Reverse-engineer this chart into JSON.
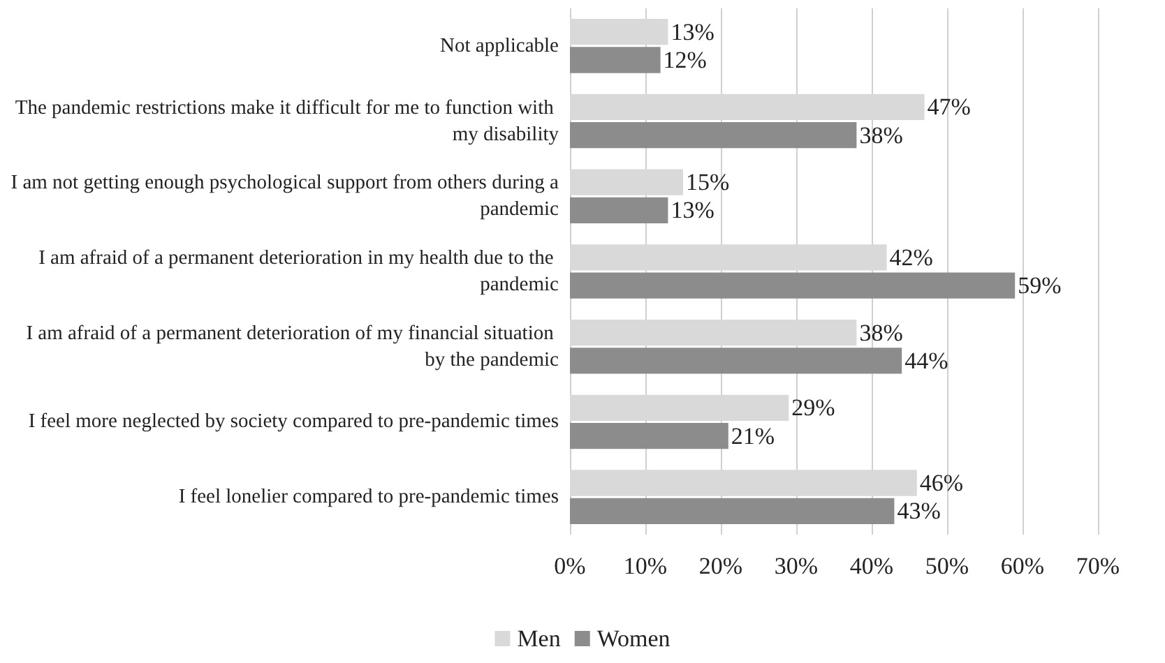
{
  "chart_data": {
    "type": "bar",
    "orientation": "horizontal",
    "categories": [
      "Not applicable",
      "The pandemic restrictions make it difficult for me to function with my disability",
      "I am not getting enough psychological support from others during a pandemic",
      "I am afraid of a permanent deterioration in my health due to the pandemic",
      "I am afraid of a permanent deterioration of my financial situation by the pandemic",
      "I feel more neglected by society compared to pre-pandemic times",
      "I feel lonelier compared to pre-pandemic times"
    ],
    "series": [
      {
        "name": "Men",
        "color": "#d9d9d9",
        "values": [
          13,
          47,
          15,
          42,
          38,
          29,
          46
        ],
        "value_labels": [
          "13%",
          "47%",
          "15%",
          "42%",
          "38%",
          "29%",
          "46%"
        ]
      },
      {
        "name": "Women",
        "color": "#8c8c8c",
        "values": [
          12,
          38,
          13,
          59,
          44,
          21,
          43
        ],
        "value_labels": [
          "12%",
          "38%",
          "13%",
          "59%",
          "44%",
          "21%",
          "43%"
        ]
      }
    ],
    "xlim": [
      0,
      70
    ],
    "xticks": [
      {
        "value": 0,
        "label": "0%"
      },
      {
        "value": 10,
        "label": "10%"
      },
      {
        "value": 20,
        "label": "20%"
      },
      {
        "value": 30,
        "label": "30%"
      },
      {
        "value": 40,
        "label": "40%"
      },
      {
        "value": 50,
        "label": "50%"
      },
      {
        "value": 60,
        "label": "60%"
      },
      {
        "value": 70,
        "label": "70%"
      }
    ],
    "grid": "x",
    "legend": "bottom"
  }
}
